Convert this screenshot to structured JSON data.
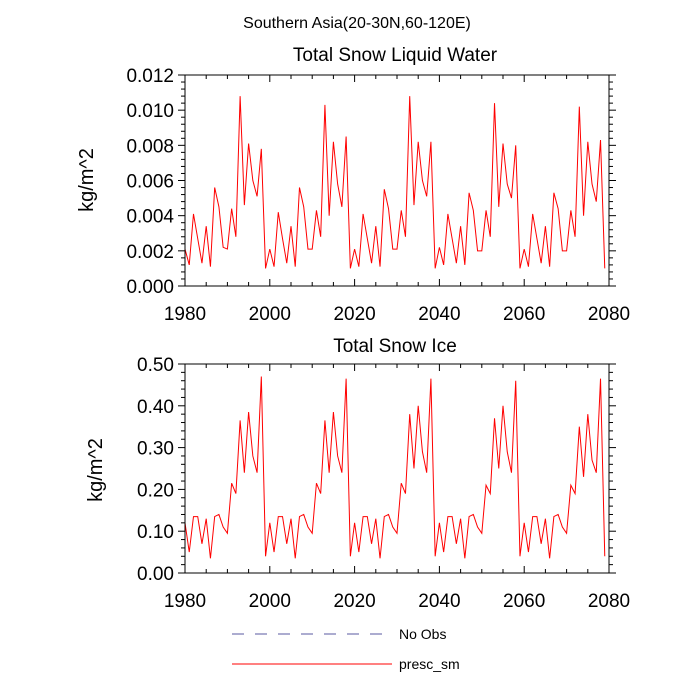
{
  "figure": {
    "suptitle": "Southern Asia(20-30N,60-120E)"
  },
  "colors": {
    "model": "#ff0000",
    "obs": "#5a5aa0",
    "axes": "#000000"
  },
  "legend": {
    "obs_label": "No Obs",
    "model_label": "presc_sm"
  },
  "chart_data": [
    {
      "type": "line",
      "title": "Total Snow Liquid Water",
      "xlabel": "",
      "ylabel": "kg/m^2",
      "xlim": [
        1980,
        2080
      ],
      "ylim": [
        0,
        0.012
      ],
      "xticks": [
        1980,
        2000,
        2020,
        2040,
        2060,
        2080
      ],
      "xtick_labels": [
        "1980",
        "2000",
        "2020",
        "2040",
        "2060",
        "2080"
      ],
      "yticks": [
        0,
        0.002,
        0.004,
        0.006,
        0.008,
        0.01,
        0.012
      ],
      "ytick_labels": [
        "0.000",
        "0.002",
        "0.004",
        "0.006",
        "0.008",
        "0.010",
        "0.012"
      ],
      "grid": false,
      "series": [
        {
          "name": "presc_sm",
          "x": [
            1980,
            1981,
            1982,
            1983,
            1984,
            1985,
            1986,
            1987,
            1988,
            1989,
            1990,
            1991,
            1992,
            1993,
            1994,
            1995,
            1996,
            1997,
            1998,
            1999,
            2000,
            2001,
            2002,
            2003,
            2004,
            2005,
            2006,
            2007,
            2008,
            2009,
            2010,
            2011,
            2012,
            2013,
            2014,
            2015,
            2016,
            2017,
            2018,
            2019,
            2020,
            2021,
            2022,
            2023,
            2024,
            2025,
            2026,
            2027,
            2028,
            2029,
            2030,
            2031,
            2032,
            2033,
            2034,
            2035,
            2036,
            2037,
            2038,
            2039,
            2040,
            2041,
            2042,
            2043,
            2044,
            2045,
            2046,
            2047,
            2048,
            2049,
            2050,
            2051,
            2052,
            2053,
            2054,
            2055,
            2056,
            2057,
            2058,
            2059,
            2060,
            2061,
            2062,
            2063,
            2064,
            2065,
            2066,
            2067,
            2068,
            2069,
            2070,
            2071,
            2072,
            2073,
            2074,
            2075,
            2076,
            2077,
            2078,
            2079
          ],
          "values": [
            0.0021,
            0.0012,
            0.0041,
            0.0027,
            0.0013,
            0.0034,
            0.0011,
            0.0056,
            0.0045,
            0.0022,
            0.0021,
            0.0044,
            0.0028,
            0.0108,
            0.0046,
            0.0081,
            0.006,
            0.0051,
            0.0078,
            0.001,
            0.0021,
            0.0011,
            0.0042,
            0.0027,
            0.0013,
            0.0034,
            0.0011,
            0.0056,
            0.0045,
            0.0021,
            0.0021,
            0.0043,
            0.0028,
            0.0103,
            0.004,
            0.0082,
            0.0058,
            0.0045,
            0.0085,
            0.001,
            0.0021,
            0.0011,
            0.0041,
            0.0027,
            0.0013,
            0.0034,
            0.0011,
            0.0055,
            0.0044,
            0.0021,
            0.0021,
            0.0043,
            0.0028,
            0.0108,
            0.0046,
            0.0082,
            0.006,
            0.0051,
            0.0082,
            0.001,
            0.0022,
            0.0012,
            0.0041,
            0.0027,
            0.0013,
            0.0034,
            0.0012,
            0.0053,
            0.0043,
            0.002,
            0.002,
            0.0043,
            0.0028,
            0.0104,
            0.0045,
            0.0081,
            0.0058,
            0.005,
            0.008,
            0.001,
            0.0021,
            0.0011,
            0.0041,
            0.0027,
            0.0013,
            0.0034,
            0.0011,
            0.0053,
            0.0044,
            0.002,
            0.002,
            0.0043,
            0.0028,
            0.0102,
            0.004,
            0.0082,
            0.0058,
            0.0048,
            0.0083,
            0.001
          ]
        }
      ]
    },
    {
      "type": "line",
      "title": "Total Snow Ice",
      "xlabel": "",
      "ylabel": "kg/m^2",
      "xlim": [
        1980,
        2080
      ],
      "ylim": [
        0,
        0.5
      ],
      "xticks": [
        1980,
        2000,
        2020,
        2040,
        2060,
        2080
      ],
      "xtick_labels": [
        "1980",
        "2000",
        "2020",
        "2040",
        "2060",
        "2080"
      ],
      "yticks": [
        0,
        0.1,
        0.2,
        0.3,
        0.4,
        0.5
      ],
      "ytick_labels": [
        "0.00",
        "0.10",
        "0.20",
        "0.30",
        "0.40",
        "0.50"
      ],
      "grid": false,
      "series": [
        {
          "name": "presc_sm",
          "x": [
            1980,
            1981,
            1982,
            1983,
            1984,
            1985,
            1986,
            1987,
            1988,
            1989,
            1990,
            1991,
            1992,
            1993,
            1994,
            1995,
            1996,
            1997,
            1998,
            1999,
            2000,
            2001,
            2002,
            2003,
            2004,
            2005,
            2006,
            2007,
            2008,
            2009,
            2010,
            2011,
            2012,
            2013,
            2014,
            2015,
            2016,
            2017,
            2018,
            2019,
            2020,
            2021,
            2022,
            2023,
            2024,
            2025,
            2026,
            2027,
            2028,
            2029,
            2030,
            2031,
            2032,
            2033,
            2034,
            2035,
            2036,
            2037,
            2038,
            2039,
            2040,
            2041,
            2042,
            2043,
            2044,
            2045,
            2046,
            2047,
            2048,
            2049,
            2050,
            2051,
            2052,
            2053,
            2054,
            2055,
            2056,
            2057,
            2058,
            2059,
            2060,
            2061,
            2062,
            2063,
            2064,
            2065,
            2066,
            2067,
            2068,
            2069,
            2070,
            2071,
            2072,
            2073,
            2074,
            2075,
            2076,
            2077,
            2078,
            2079
          ],
          "values": [
            0.12,
            0.05,
            0.135,
            0.135,
            0.07,
            0.13,
            0.035,
            0.135,
            0.14,
            0.11,
            0.095,
            0.215,
            0.19,
            0.365,
            0.24,
            0.385,
            0.28,
            0.24,
            0.47,
            0.04,
            0.12,
            0.05,
            0.135,
            0.135,
            0.07,
            0.13,
            0.035,
            0.135,
            0.14,
            0.11,
            0.095,
            0.215,
            0.19,
            0.365,
            0.24,
            0.385,
            0.28,
            0.24,
            0.465,
            0.04,
            0.12,
            0.05,
            0.135,
            0.135,
            0.07,
            0.13,
            0.035,
            0.135,
            0.14,
            0.11,
            0.095,
            0.215,
            0.19,
            0.38,
            0.25,
            0.4,
            0.29,
            0.24,
            0.465,
            0.04,
            0.12,
            0.05,
            0.135,
            0.135,
            0.07,
            0.13,
            0.035,
            0.135,
            0.14,
            0.11,
            0.095,
            0.21,
            0.19,
            0.37,
            0.25,
            0.4,
            0.29,
            0.24,
            0.46,
            0.04,
            0.12,
            0.05,
            0.135,
            0.135,
            0.07,
            0.13,
            0.035,
            0.135,
            0.14,
            0.11,
            0.095,
            0.21,
            0.19,
            0.35,
            0.23,
            0.38,
            0.27,
            0.24,
            0.465,
            0.04
          ]
        }
      ]
    }
  ]
}
